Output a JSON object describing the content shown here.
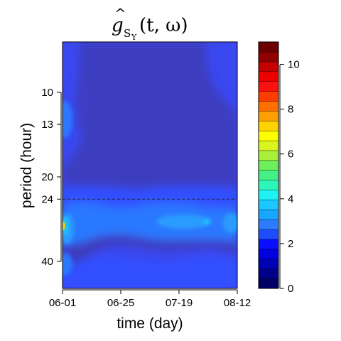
{
  "chart_data": {
    "type": "heatmap",
    "title": {
      "main": "g",
      "hat": "^",
      "subscript": "S",
      "sub_subscript": "Y",
      "args": "(t, ω)"
    },
    "xlabel": "time (day)",
    "ylabel": "period (hour)",
    "x_ticks": [
      "06-01",
      "06-25",
      "07-19",
      "08-12"
    ],
    "y_ticks": [
      "10",
      "13",
      "20",
      "24",
      "40"
    ],
    "reference_line": {
      "period": 24,
      "style": "dashed"
    },
    "colorbar": {
      "min": 0,
      "max": 11,
      "levels": 22,
      "ticks": [
        "0",
        "2",
        "4",
        "6",
        "8",
        "10"
      ],
      "colors": [
        "#000066",
        "#000088",
        "#0000b4",
        "#0000e0",
        "#0a10ff",
        "#1e4cff",
        "#2c7cff",
        "#18a6ff",
        "#1ac8ff",
        "#1ef2f2",
        "#2ef6b8",
        "#44f088",
        "#6ef05a",
        "#a8f03a",
        "#dcf41e",
        "#ffff00",
        "#ffd200",
        "#ffa000",
        "#ff7000",
        "#ff3c00",
        "#ff1010",
        "#ee0000",
        "#c40000",
        "#900000",
        "#6a0000"
      ]
    },
    "region_colors": {
      "base": "#3a48f0",
      "dark": "#3c3ec0",
      "mid": "#3050ff",
      "light": "#2c78ff",
      "peak": "#2c9cff",
      "bright": "#1ec8ff",
      "hot": "#ffd400",
      "dash": "#222222"
    }
  }
}
